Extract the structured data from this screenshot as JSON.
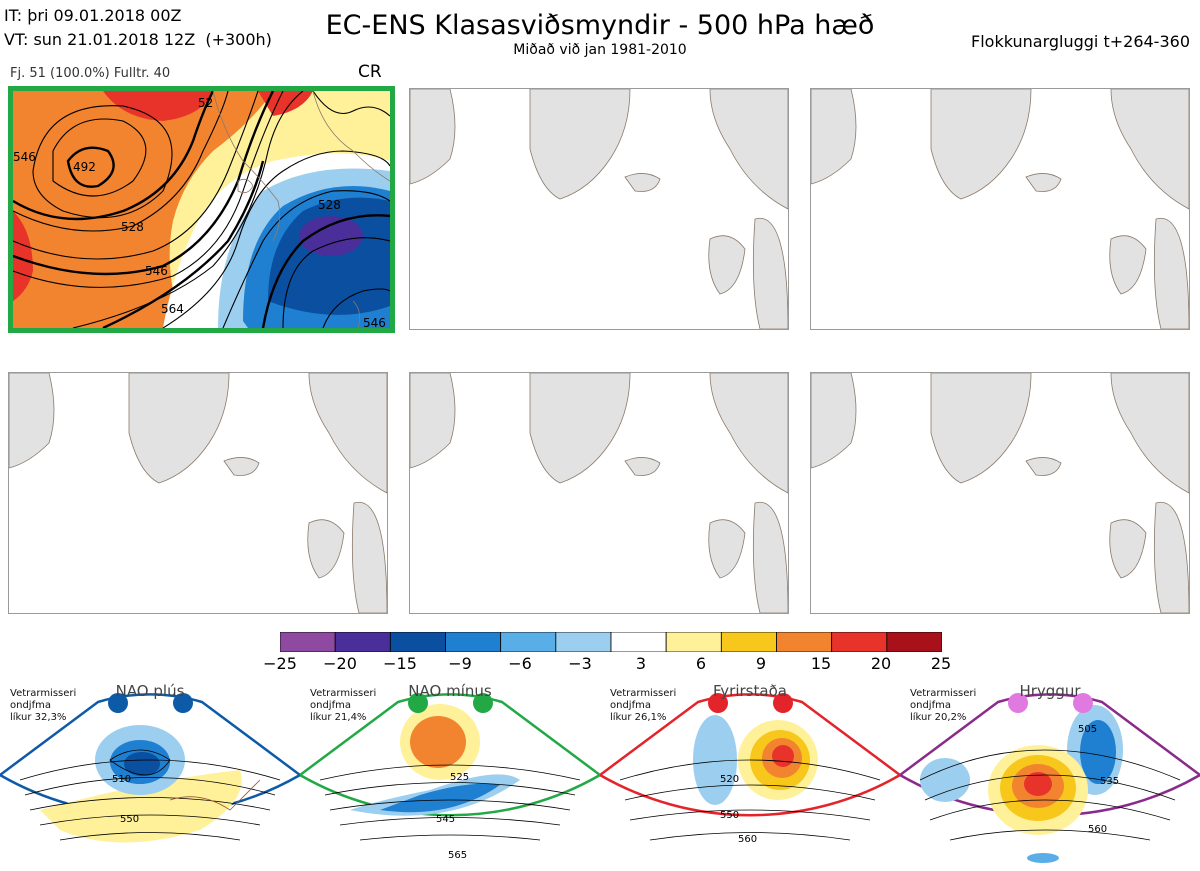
{
  "header": {
    "it_line": "IT: þri 09.01.2018 00Z",
    "vt_line": "VT: sun 21.01.2018 12Z  (+300h)",
    "title": "EC-ENS Klasasviðsmyndir - 500 hPa hæð",
    "subtitle": "Miðað við jan 1981-2010",
    "window": "Flokkunargluggi t+264-360"
  },
  "panel1": {
    "label": "Fj. 51 (100.0%)   Fulltr. 40",
    "code": "CR",
    "contour_labels": [
      "492",
      "528",
      "546",
      "564",
      "528",
      "546",
      "546",
      "52"
    ]
  },
  "colorbar": {
    "ticks": [
      "−25",
      "−20",
      "−15",
      "−9",
      "−6",
      "−3",
      "3",
      "6",
      "9",
      "15",
      "20",
      "25"
    ],
    "colors": [
      "#8e4aa0",
      "#4a2f9a",
      "#0a4fa0",
      "#1f7fd0",
      "#5aaee8",
      "#9ccfef",
      "#ffffff",
      "#fff19a",
      "#f7c71c",
      "#f28430",
      "#e8332b",
      "#a8101a"
    ]
  },
  "regimes": [
    {
      "name": "NAO plús",
      "info": "Vetrarmisseri\nondjfma\nlíkur 32,3%",
      "color": "#0d5aa7",
      "labels": [
        "510",
        "550"
      ]
    },
    {
      "name": "NAO mínus",
      "info": "Vetrarmisseri\nondjfma\nlíkur 21,4%",
      "color": "#22a845",
      "labels": [
        "525",
        "545",
        "565"
      ]
    },
    {
      "name": "Fyrirstaða",
      "info": "Vetrarmisseri\nondjfma\nlíkur 26,1%",
      "color": "#e3242b",
      "labels": [
        "520",
        "550",
        "560"
      ]
    },
    {
      "name": "Hryggur",
      "info": "Vetrarmisseri\nondjfma\nlíkur 20,2%",
      "color": "#8a2a8a",
      "labels": [
        "505",
        "535",
        "560"
      ]
    }
  ]
}
